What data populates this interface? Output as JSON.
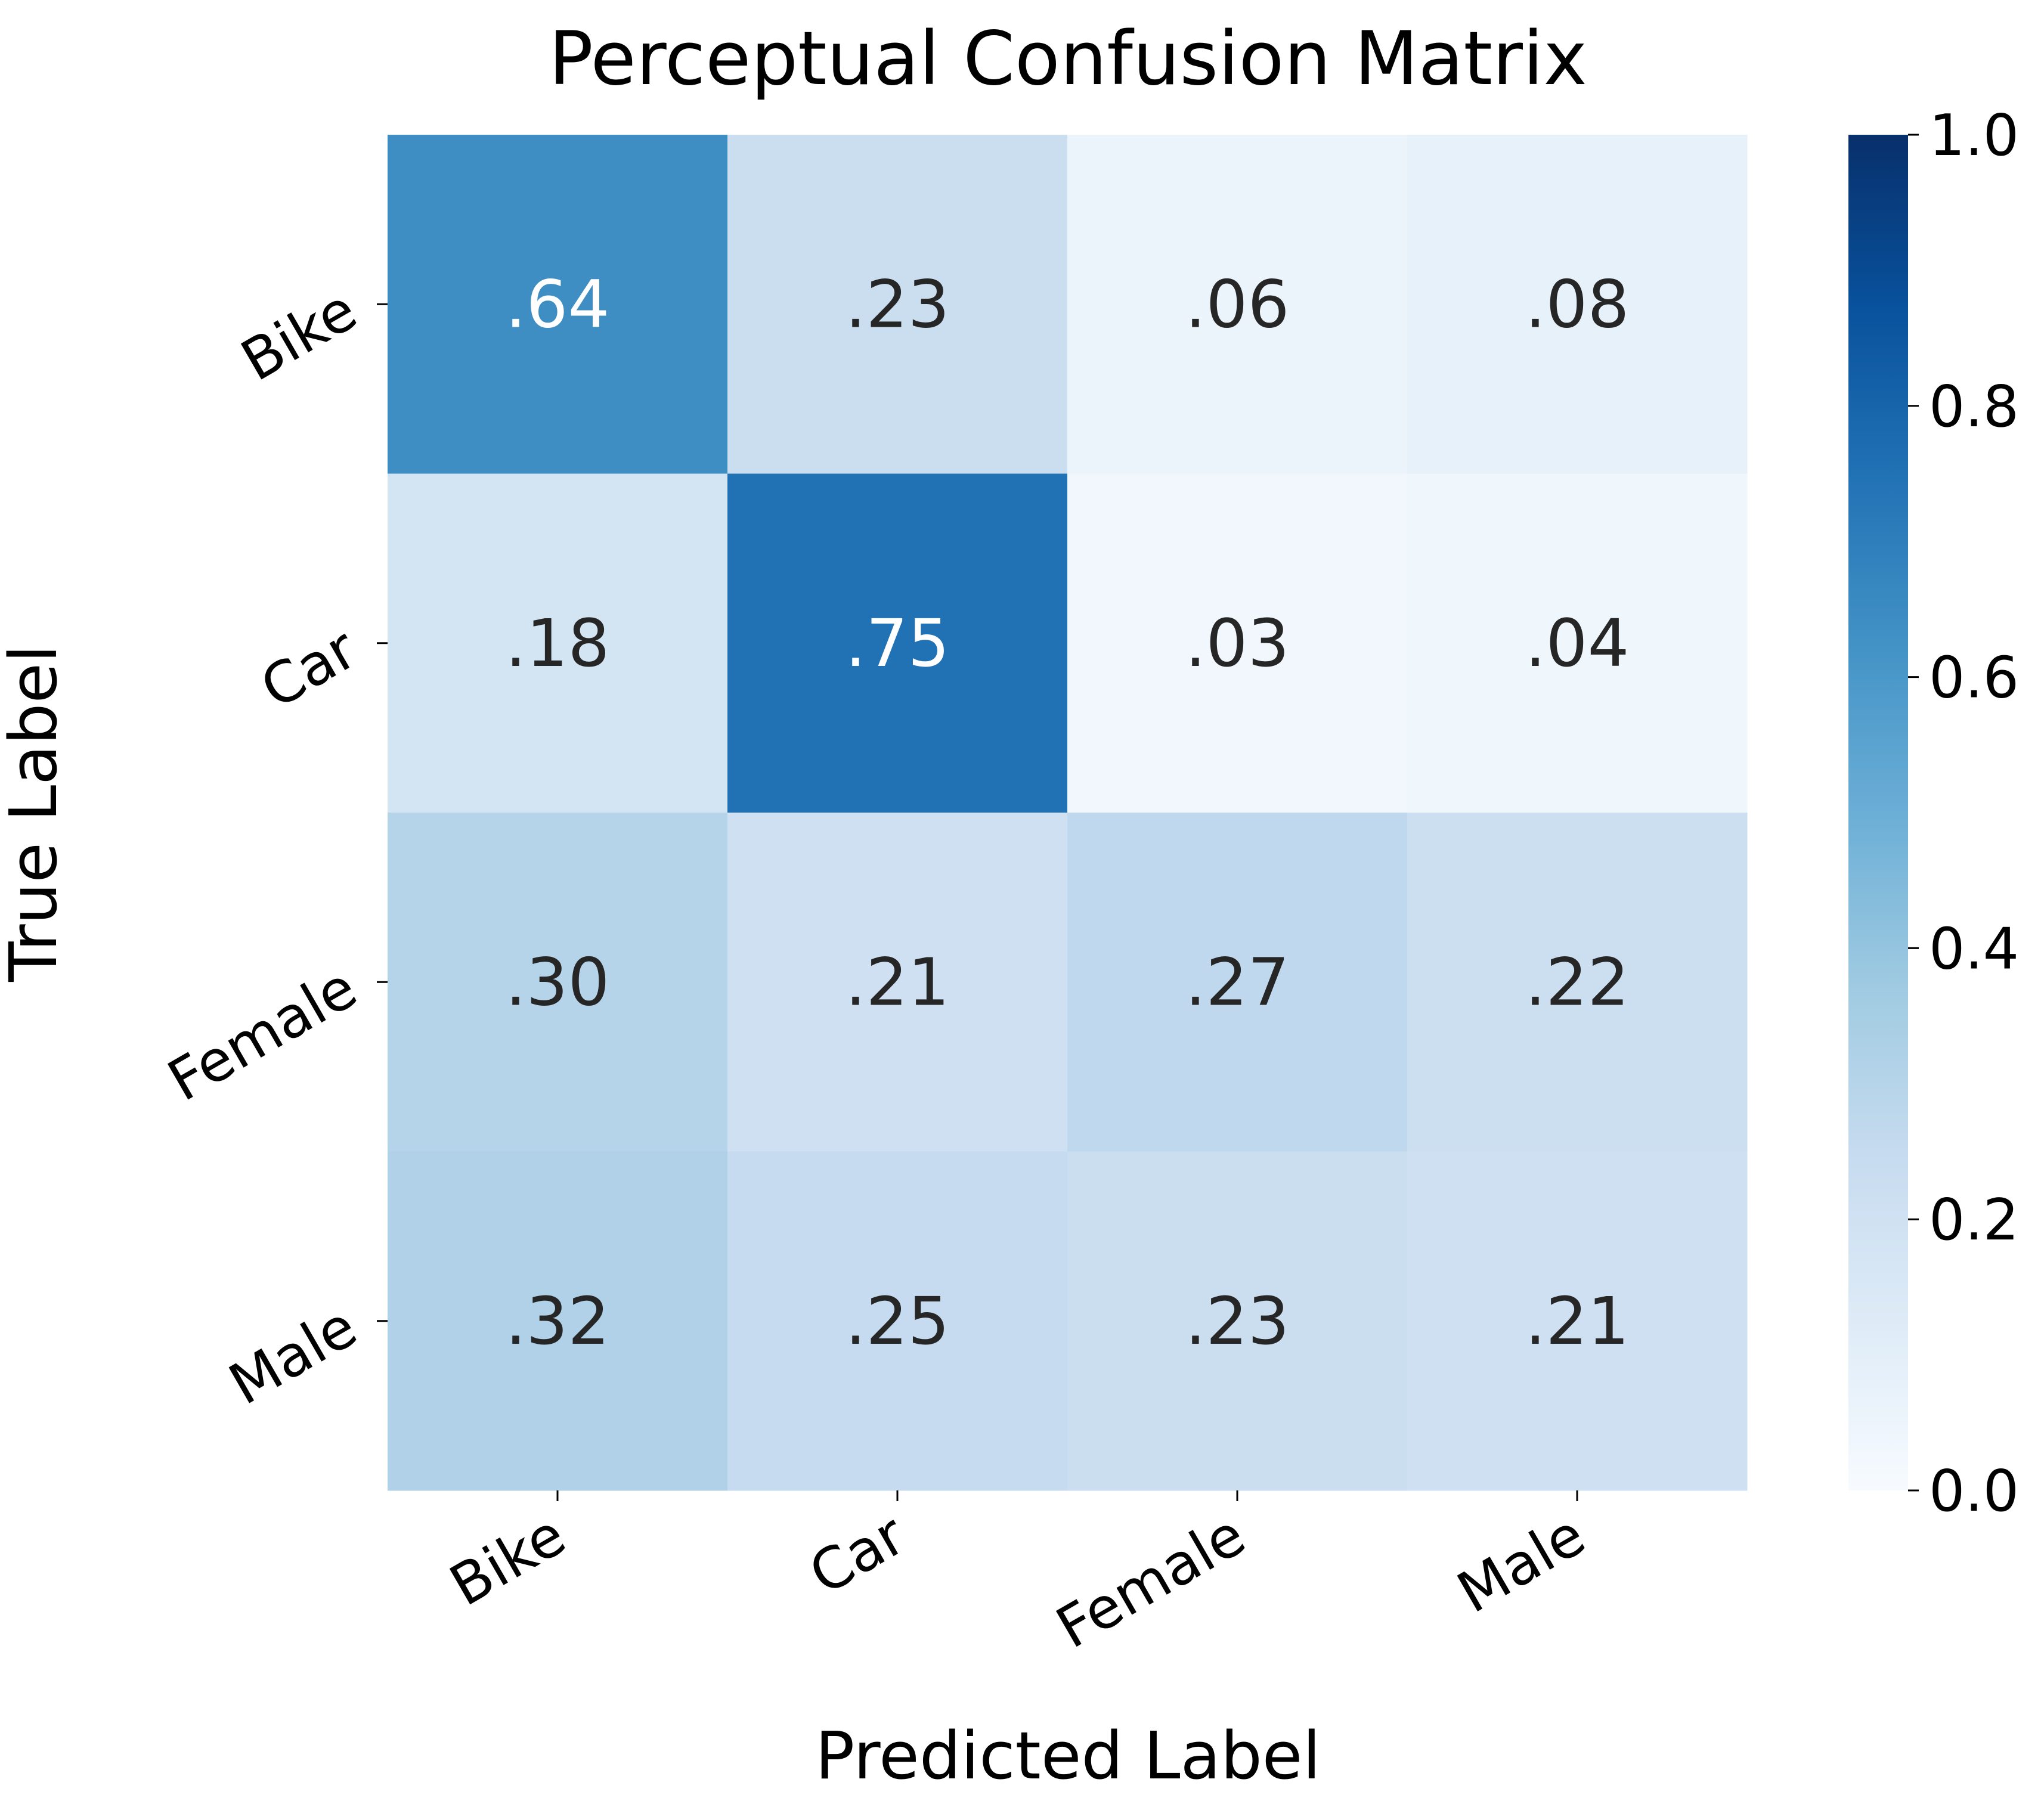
{
  "chart_data": {
    "type": "heatmap",
    "title": "Perceptual Confusion Matrix",
    "xlabel": "Predicted Label",
    "ylabel": "True Label",
    "x_categories": [
      "Bike",
      "Car",
      "Female",
      "Male"
    ],
    "y_categories": [
      "Bike",
      "Car",
      "Female",
      "Male"
    ],
    "values": [
      [
        0.64,
        0.23,
        0.06,
        0.08
      ],
      [
        0.18,
        0.75,
        0.03,
        0.04
      ],
      [
        0.3,
        0.21,
        0.27,
        0.22
      ],
      [
        0.32,
        0.25,
        0.23,
        0.21
      ]
    ],
    "cell_labels": [
      [
        ".64",
        ".23",
        ".06",
        ".08"
      ],
      [
        ".18",
        ".75",
        ".03",
        ".04"
      ],
      [
        ".30",
        ".21",
        ".27",
        ".22"
      ],
      [
        ".32",
        ".25",
        ".23",
        ".21"
      ]
    ],
    "colormap": "Blues",
    "vmin": 0.0,
    "vmax": 1.0,
    "colorbar_ticks": [
      0.0,
      0.2,
      0.4,
      0.6,
      0.8,
      1.0
    ],
    "colorbar_tick_labels": [
      "0.0",
      "0.2",
      "0.4",
      "0.6",
      "0.8",
      "1.0"
    ],
    "colorbar_position": "right",
    "grid": false,
    "text_color_dark": "#262626",
    "text_color_light": "#ffffff"
  }
}
